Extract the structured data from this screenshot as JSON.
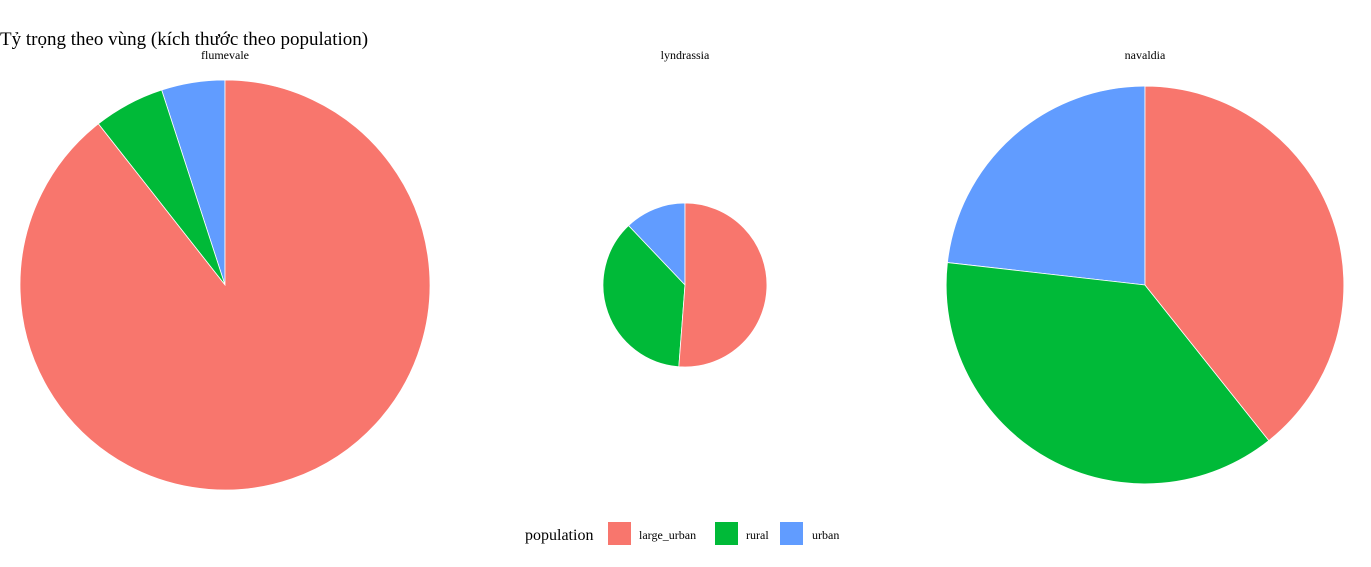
{
  "chart_data": {
    "type": "pie",
    "title": "Tỷ trọng  theo vùng (kích thước theo population)",
    "legend": {
      "title": "population",
      "position": "bottom",
      "entries": [
        {
          "label": "large_urban",
          "color": "#F8766D"
        },
        {
          "label": "rural",
          "color": "#00BA38"
        },
        {
          "label": "urban",
          "color": "#619CFF"
        }
      ]
    },
    "panels": [
      {
        "name": "flumevale",
        "relative_size": 1.0,
        "slices": [
          {
            "category": "large_urban",
            "share": 0.894
          },
          {
            "category": "rural",
            "share": 0.056
          },
          {
            "category": "urban",
            "share": 0.05
          }
        ]
      },
      {
        "name": "lyndrassia",
        "relative_size": 0.4,
        "slices": [
          {
            "category": "large_urban",
            "share": 0.512
          },
          {
            "category": "rural",
            "share": 0.367
          },
          {
            "category": "urban",
            "share": 0.121
          }
        ]
      },
      {
        "name": "navaldia",
        "relative_size": 0.97,
        "slices": [
          {
            "category": "large_urban",
            "share": 0.393
          },
          {
            "category": "rural",
            "share": 0.375
          },
          {
            "category": "urban",
            "share": 0.232
          }
        ]
      }
    ]
  }
}
